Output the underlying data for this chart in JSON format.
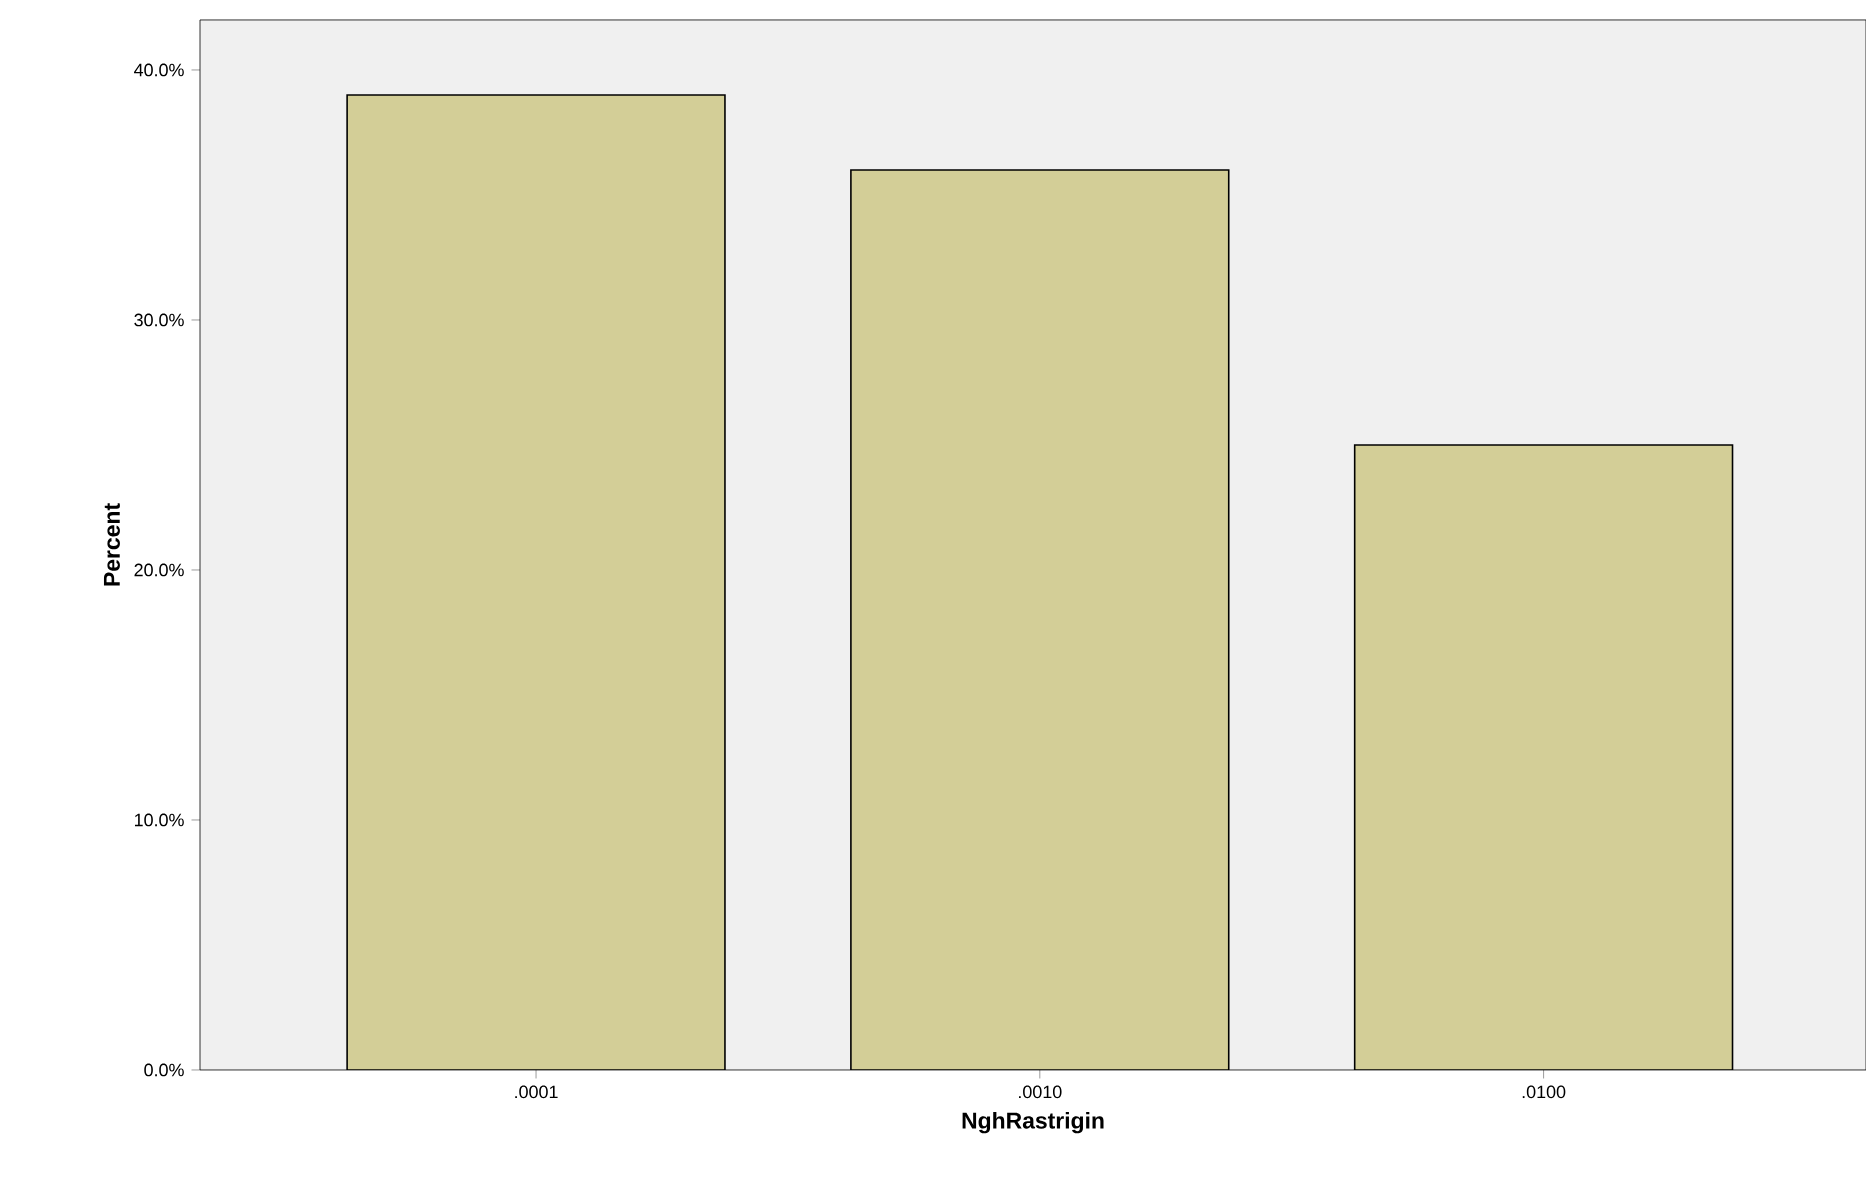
{
  "chart_data": {
    "type": "bar",
    "xlabel": "NghRastrigin",
    "ylabel": "Percent",
    "categories": [
      ".0001",
      ".0010",
      ".0100"
    ],
    "values": [
      39,
      36,
      25
    ],
    "color": "#d3ce97",
    "ylim": [
      0,
      42
    ],
    "yticks": [
      {
        "value": 0,
        "label": "0.0%"
      },
      {
        "value": 10,
        "label": "10.0%"
      },
      {
        "value": 20,
        "label": "20.0%"
      },
      {
        "value": 30,
        "label": "30.0%"
      },
      {
        "value": 40,
        "label": "40.0%"
      }
    ],
    "grid": false
  }
}
